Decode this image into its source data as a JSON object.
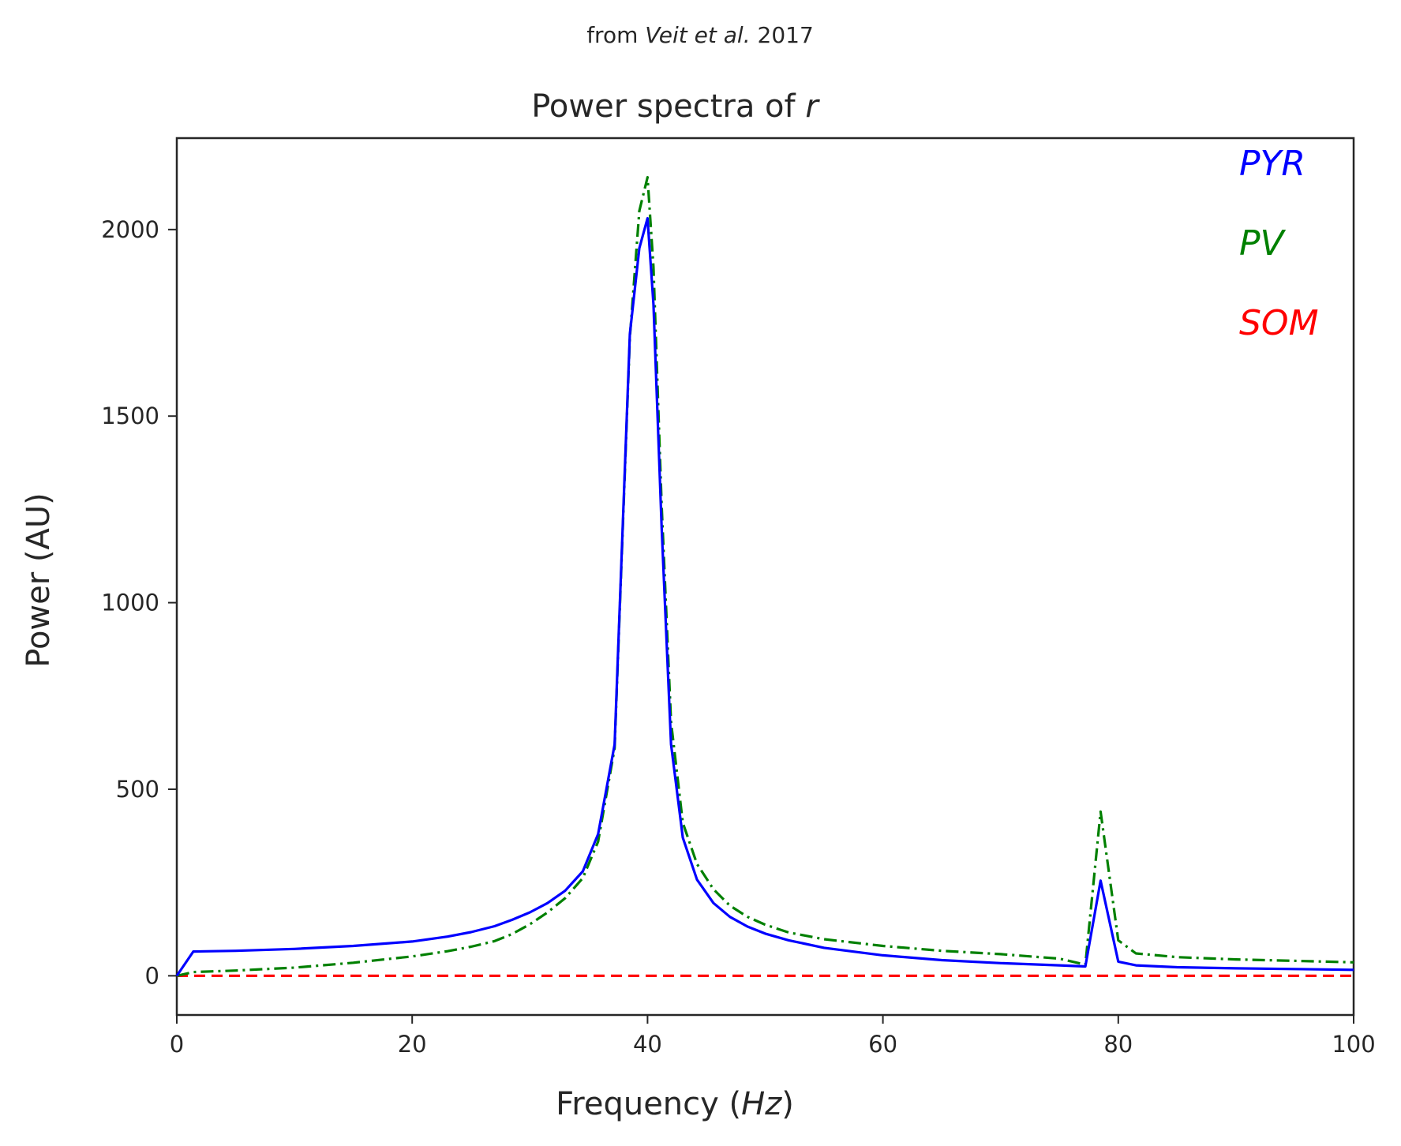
{
  "header": {
    "prefix": "from ",
    "authors": "Veit et al.",
    "year": " 2017"
  },
  "chart_data": {
    "type": "line",
    "title_prefix": "Power spectra of ",
    "title_var": "r",
    "xlabel_prefix": "Frequency (",
    "xlabel_unit": "Hz",
    "xlabel_suffix": ")",
    "ylabel": "Power (AU)",
    "xlim": [
      0,
      100
    ],
    "ylim": [
      -105,
      2245
    ],
    "xticks": [
      0,
      20,
      40,
      60,
      80,
      100
    ],
    "xtick_labels": [
      "0",
      "20",
      "40",
      "60",
      "80",
      "100"
    ],
    "yticks": [
      0,
      500,
      1000,
      1500,
      2000
    ],
    "ytick_labels": [
      "0",
      "500",
      "1000",
      "1500",
      "2000"
    ],
    "grid": false,
    "legend_position": "top-right",
    "series": [
      {
        "name": "PYR",
        "color": "#0000ff",
        "style": "solid",
        "x": [
          0,
          1.4,
          5,
          10,
          15,
          20,
          23,
          25,
          27,
          28.5,
          30,
          31.5,
          33,
          34.5,
          35.8,
          37.2,
          38.5,
          39.3,
          40,
          40.5,
          41.2,
          42,
          43,
          44.2,
          45.6,
          47,
          48.5,
          50,
          52,
          55,
          60,
          65,
          70,
          75,
          77.2,
          78.5,
          80,
          81.5,
          85,
          90,
          95,
          100
        ],
        "y": [
          0,
          65,
          67,
          72,
          80,
          92,
          105,
          117,
          133,
          150,
          170,
          195,
          228,
          280,
          380,
          620,
          1720,
          1950,
          2030,
          1800,
          1200,
          620,
          370,
          258,
          195,
          158,
          132,
          113,
          95,
          75,
          55,
          42,
          34,
          28,
          25,
          255,
          38,
          28,
          23,
          20,
          18,
          16
        ]
      },
      {
        "name": "PV",
        "color": "#008000",
        "style": "dashdot",
        "x": [
          0,
          1.4,
          5,
          10,
          15,
          20,
          23,
          25,
          27,
          28.5,
          30,
          31.5,
          33,
          34.5,
          35.8,
          37.2,
          38.5,
          39.3,
          40,
          40.5,
          41.2,
          42,
          43,
          44.2,
          45.6,
          47,
          48.5,
          50,
          52,
          55,
          60,
          65,
          70,
          75,
          77.2,
          78.5,
          80,
          81.5,
          85,
          90,
          95,
          100
        ],
        "y": [
          0,
          10,
          14,
          22,
          35,
          52,
          66,
          78,
          93,
          112,
          138,
          170,
          208,
          262,
          360,
          610,
          1710,
          2050,
          2140,
          1900,
          1260,
          680,
          410,
          300,
          232,
          188,
          158,
          137,
          116,
          98,
          80,
          67,
          58,
          46,
          30,
          440,
          95,
          60,
          50,
          44,
          40,
          36
        ]
      },
      {
        "name": "SOM",
        "color": "#ff0000",
        "style": "dashed",
        "x": [
          0,
          100
        ],
        "y": [
          0,
          0
        ]
      }
    ]
  }
}
